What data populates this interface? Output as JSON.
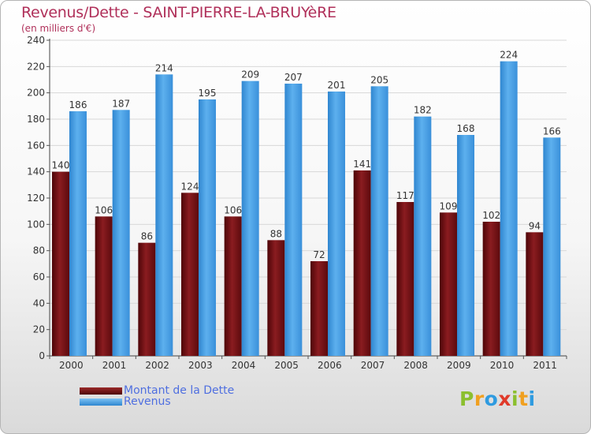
{
  "header": {
    "title": "Revenus/Dette - SAINT-PIERRE-LA-BRUYèRE",
    "subtitle": "(en milliers d'€)"
  },
  "legend": {
    "items": [
      {
        "label": "Montant de la Dette",
        "color": "#7a1015"
      },
      {
        "label": "Revenus",
        "color": "#4aa0e6"
      }
    ]
  },
  "logo": {
    "text": "Proxiti",
    "letters": [
      {
        "ch": "P",
        "color": "#8bbf2f"
      },
      {
        "ch": "r",
        "color": "#f0a020"
      },
      {
        "ch": "o",
        "color": "#2f9be0"
      },
      {
        "ch": "x",
        "color": "#e03a2a"
      },
      {
        "ch": "i",
        "color": "#8bbf2f"
      },
      {
        "ch": "t",
        "color": "#f0a020"
      },
      {
        "ch": "i",
        "color": "#2f9be0"
      }
    ]
  },
  "chart_data": {
    "type": "bar",
    "title": "Revenus/Dette - SAINT-PIERRE-LA-BRUYèRE",
    "ylabel": "(en milliers d'€)",
    "xlabel": "",
    "categories": [
      "2000",
      "2001",
      "2002",
      "2003",
      "2004",
      "2005",
      "2006",
      "2007",
      "2008",
      "2009",
      "2010",
      "2011"
    ],
    "series": [
      {
        "name": "Montant de la Dette",
        "color": "#7a1015",
        "values": [
          140,
          106,
          86,
          124,
          106,
          88,
          72,
          141,
          117,
          109,
          102,
          94
        ]
      },
      {
        "name": "Revenus",
        "color": "#4aa0e6",
        "values": [
          186,
          187,
          214,
          195,
          209,
          207,
          201,
          205,
          182,
          168,
          224,
          166
        ]
      }
    ],
    "ylim": [
      0,
      240
    ],
    "yticks": [
      0,
      20,
      40,
      60,
      80,
      100,
      120,
      140,
      160,
      180,
      200,
      220,
      240
    ],
    "grid": true,
    "legend_position": "bottom-left"
  }
}
